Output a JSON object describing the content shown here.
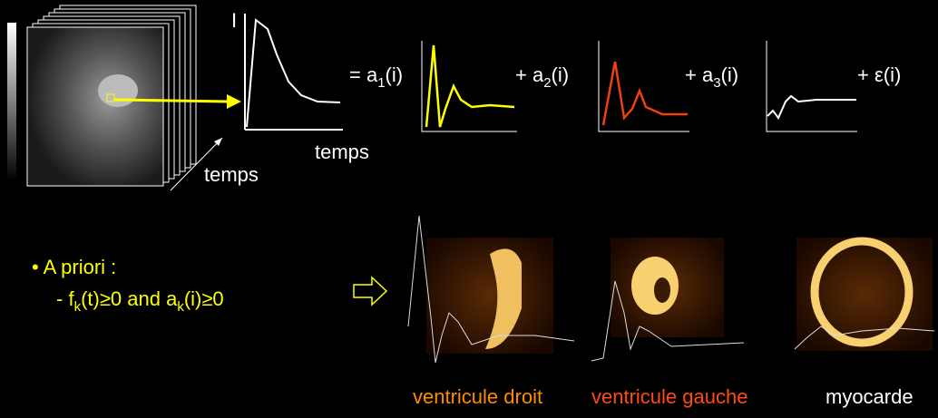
{
  "header": {
    "axis_label": "I",
    "time_label_curve": "temps",
    "time_label_stack": "temps"
  },
  "equation": {
    "terms": [
      {
        "prefix": "= a",
        "sub": "1",
        "suffix": "(i)"
      },
      {
        "prefix": "+ a",
        "sub": "2",
        "suffix": "(i)"
      },
      {
        "prefix": "+ a",
        "sub": "3",
        "suffix": "(i)"
      },
      {
        "prefix": "+ ε(i)"
      }
    ]
  },
  "bullet": {
    "title": "• A priori :",
    "constraint": {
      "p1": "-  f",
      "s1": "k",
      "p2": "(t)≥0  and  a",
      "s2": "k",
      "p3": "(i)≥0"
    }
  },
  "captions": [
    "ventricule droit",
    "ventricule gauche",
    "myocarde"
  ]
}
